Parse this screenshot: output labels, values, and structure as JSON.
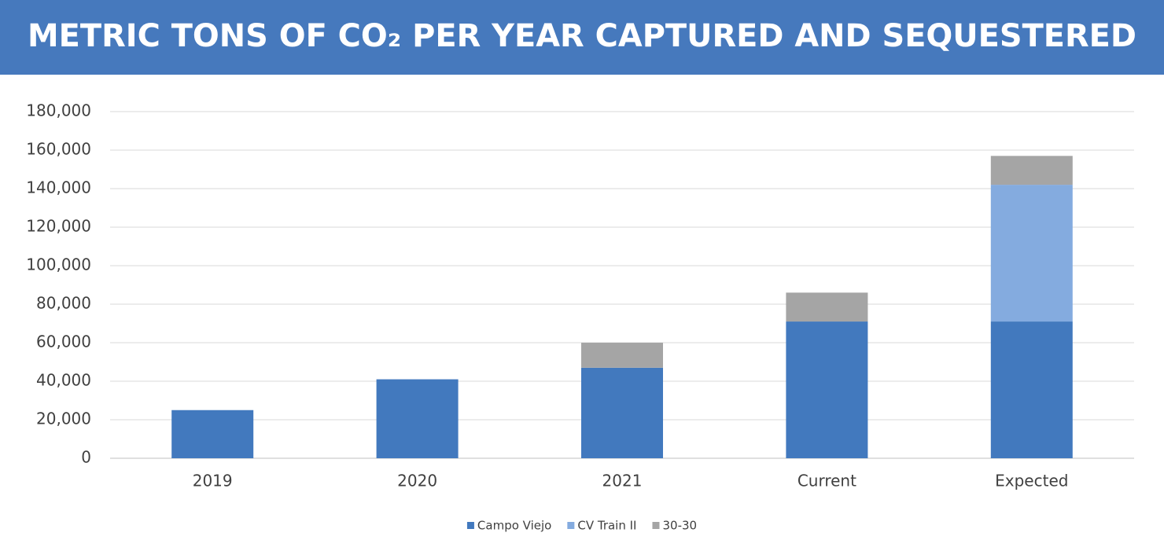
{
  "chart_data": {
    "type": "stacked-bar",
    "title": "METRIC TONS OF CO₂ PER YEAR CAPTURED AND SEQUESTERED",
    "categories": [
      "2019",
      "2020",
      "2021",
      "Current",
      "Expected"
    ],
    "series": [
      {
        "name": "Campo Viejo",
        "color": "#4279be",
        "values": [
          25000,
          41000,
          47000,
          71000,
          71000
        ]
      },
      {
        "name": "CV Train II",
        "color": "#84abdf",
        "values": [
          0,
          0,
          0,
          0,
          71000
        ]
      },
      {
        "name": "30-30",
        "color": "#a5a5a5",
        "values": [
          0,
          0,
          13000,
          15000,
          15000
        ]
      }
    ],
    "ylim": [
      0,
      180000
    ],
    "yticks": [
      0,
      {
        "value": 20000,
        "label": "20,000"
      },
      {
        "value": 40000,
        "label": "40,000"
      },
      {
        "value": 60000,
        "label": "60,000"
      },
      {
        "value": 80000,
        "label": "80,000"
      },
      {
        "value": 100000,
        "label": "100,000"
      },
      {
        "value": 120000,
        "label": "120,000"
      },
      {
        "value": 140000,
        "label": "140,000"
      },
      {
        "value": 160000,
        "label": "160,000"
      },
      {
        "value": 180000,
        "label": "180,000"
      }
    ],
    "grid": true,
    "legend": "bottom",
    "header_color": "#4679bd"
  }
}
